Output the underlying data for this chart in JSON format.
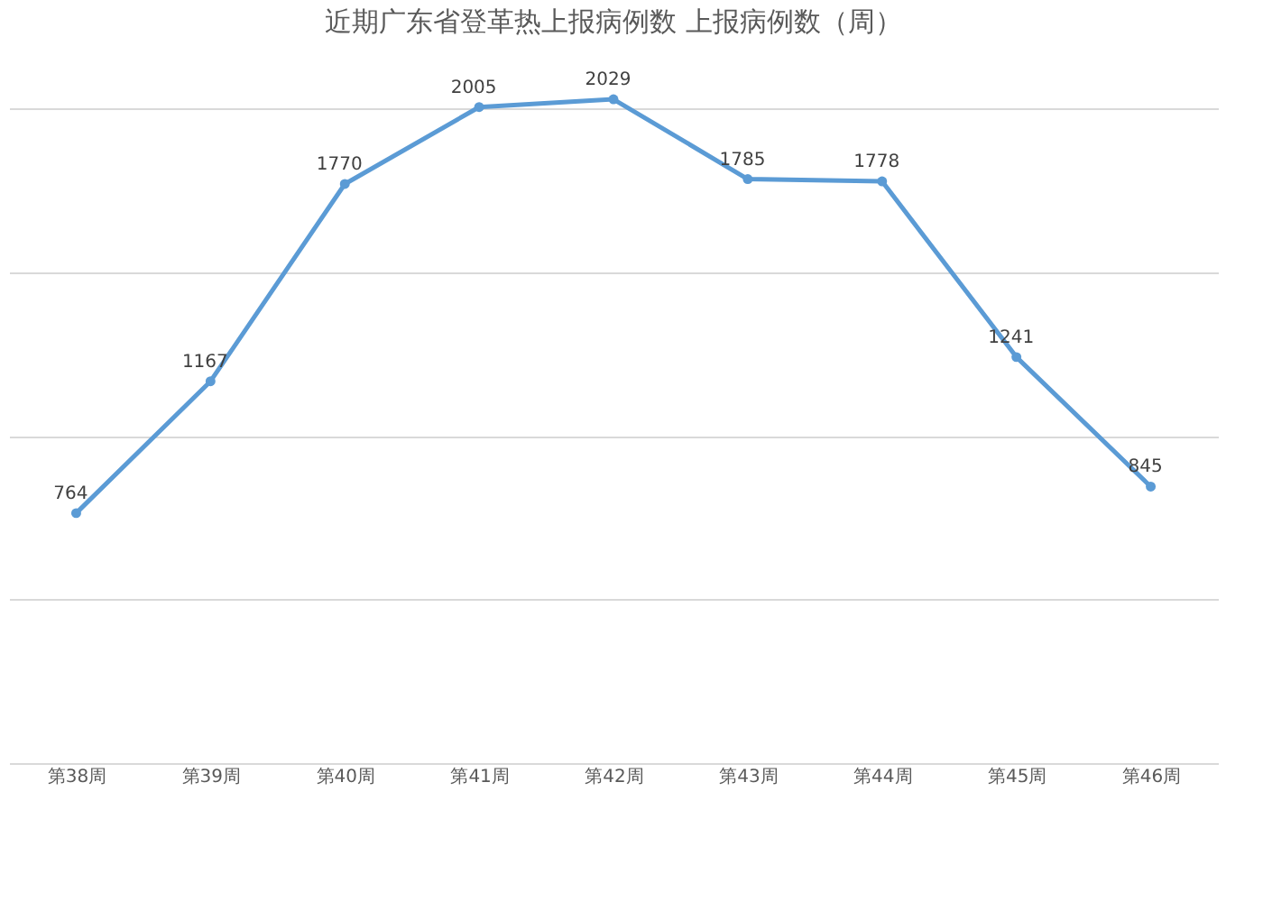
{
  "chart_data": {
    "type": "line",
    "title": "近期广东省登革热上报病例数 上报病例数（周）",
    "categories": [
      "第38周",
      "第39周",
      "第40周",
      "第41周",
      "第42周",
      "第43周",
      "第44周",
      "第45周",
      "第46周"
    ],
    "series": [
      {
        "color": "#5b9bd5",
        "values": [
          764,
          1167,
          1770,
          2005,
          2029,
          1785,
          1778,
          1241,
          845
        ]
      }
    ],
    "data_labels": true,
    "tick_labels": "x",
    "grid": "y",
    "marker": "circle",
    "line_style": "solid"
  }
}
